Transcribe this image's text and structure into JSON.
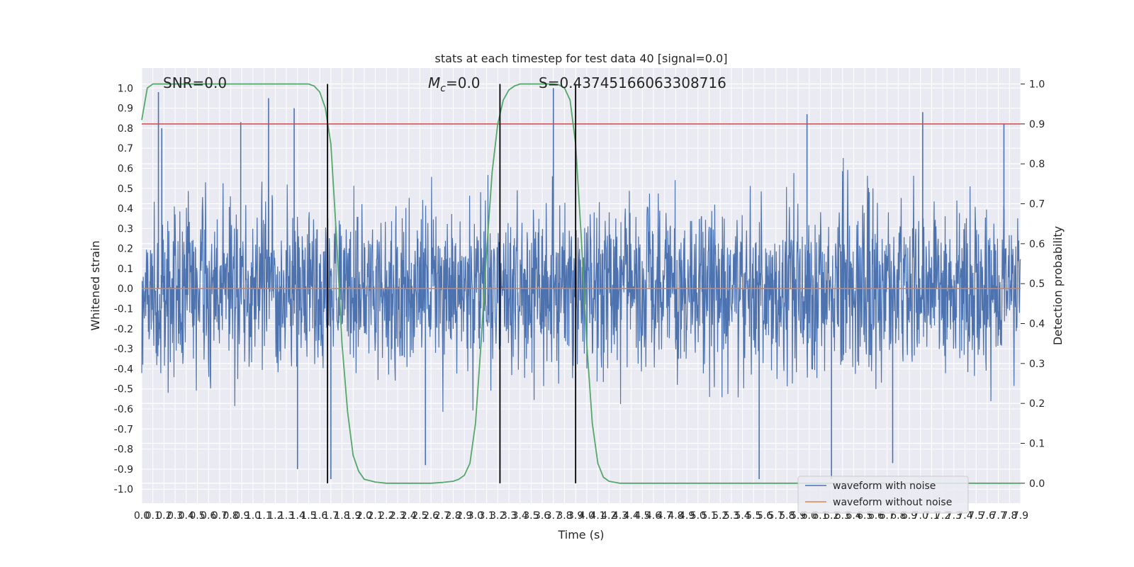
{
  "chart_data": {
    "type": "line",
    "title": "stats at each timestep for test data 40 [signal=0.0]",
    "xlabel": "Time (s)",
    "ylabel_left": "Whitened strain",
    "ylabel_right": "Detection probability",
    "xlim": [
      0.0,
      7.9
    ],
    "ylim_left": [
      -1.07,
      1.1
    ],
    "ylim_right": [
      -0.05,
      1.04
    ],
    "x_ticks": [
      "0.0",
      "0.1",
      "0.2",
      "0.3",
      "0.4",
      "0.5",
      "0.6",
      "0.7",
      "0.8",
      "0.9",
      "1.0",
      "1.1",
      "1.2",
      "1.3",
      "1.4",
      "1.5",
      "1.6",
      "1.7",
      "1.8",
      "1.9",
      "2.0",
      "2.1",
      "2.2",
      "2.3",
      "2.4",
      "2.5",
      "2.6",
      "2.7",
      "2.8",
      "2.9",
      "3.0",
      "3.1",
      "3.2",
      "3.3",
      "3.4",
      "3.5",
      "3.6",
      "3.7",
      "3.8",
      "3.9",
      "4.0",
      "4.1",
      "4.2",
      "4.3",
      "4.4",
      "4.5",
      "4.6",
      "4.7",
      "4.8",
      "4.9",
      "5.0",
      "5.1",
      "5.2",
      "5.3",
      "5.4",
      "5.5",
      "5.6",
      "5.7",
      "5.8",
      "5.9",
      "6.0",
      "6.1",
      "6.2",
      "6.3",
      "6.4",
      "6.5",
      "6.6",
      "6.7",
      "6.8",
      "6.9",
      "7.0",
      "7.1",
      "7.2",
      "7.3",
      "7.4",
      "7.5",
      "7.6",
      "7.7",
      "7.8",
      "7.9"
    ],
    "y_ticks_left": [
      "1.0",
      "0.9",
      "0.8",
      "0.7",
      "0.6",
      "0.5",
      "0.4",
      "0.3",
      "0.2",
      "0.1",
      "0.0",
      "-0.1",
      "-0.2",
      "-0.3",
      "-0.4",
      "-0.5",
      "-0.6",
      "-0.7",
      "-0.8",
      "-0.9",
      "-1.0"
    ],
    "y_ticks_right": [
      "1.0",
      "0.9",
      "0.8",
      "0.7",
      "0.6",
      "0.5",
      "0.4",
      "0.3",
      "0.2",
      "0.1",
      "0.0"
    ],
    "annotations": {
      "snr": "SNR=0.0",
      "mc": "=0.0",
      "mc_symbol": "M",
      "mc_subscript": "c",
      "s": "S=0.43745166063308716"
    },
    "threshold": {
      "axis": "right",
      "value": 0.9,
      "color": "#c44e52"
    },
    "vertical_lines": [
      1.67,
      3.22,
      3.9
    ],
    "grid": true,
    "legend_position": "lower-right",
    "series": [
      {
        "name": "waveform with noise",
        "axis": "left",
        "color": "#4c72b0",
        "kind": "noise",
        "amplitude_typical": 0.4,
        "amplitude_max": 1.0,
        "spikes": [
          {
            "x": 0.15,
            "y": 0.98
          },
          {
            "x": 0.18,
            "y": 0.8
          },
          {
            "x": 1.14,
            "y": 0.95
          },
          {
            "x": 1.37,
            "y": 0.9
          },
          {
            "x": 0.89,
            "y": 0.83
          },
          {
            "x": 3.7,
            "y": 1.0
          },
          {
            "x": 5.98,
            "y": 0.87
          },
          {
            "x": 7.02,
            "y": 0.88
          },
          {
            "x": 7.75,
            "y": 0.82
          },
          {
            "x": 1.4,
            "y": -0.9
          },
          {
            "x": 1.7,
            "y": -0.95
          },
          {
            "x": 2.55,
            "y": -0.88
          },
          {
            "x": 5.55,
            "y": -0.95
          },
          {
            "x": 6.2,
            "y": -0.95
          },
          {
            "x": 6.75,
            "y": -0.87
          }
        ]
      },
      {
        "name": "waveform without noise",
        "axis": "left",
        "color": "#dd8452",
        "kind": "line",
        "x": [
          0.0,
          7.9
        ],
        "y": [
          0.0,
          0.0
        ]
      },
      {
        "name": "detection probability",
        "axis": "right",
        "color": "#55a868",
        "kind": "line",
        "x": [
          0.0,
          0.05,
          0.1,
          0.2,
          0.4,
          0.8,
          1.2,
          1.5,
          1.55,
          1.6,
          1.65,
          1.7,
          1.75,
          1.8,
          1.85,
          1.9,
          1.95,
          2.0,
          2.1,
          2.2,
          2.4,
          2.6,
          2.7,
          2.8,
          2.85,
          2.9,
          2.95,
          3.0,
          3.05,
          3.1,
          3.15,
          3.2,
          3.25,
          3.3,
          3.35,
          3.4,
          3.5,
          3.6,
          3.7,
          3.75,
          3.8,
          3.85,
          3.9,
          3.95,
          4.0,
          4.05,
          4.1,
          4.15,
          4.2,
          4.3,
          4.4,
          5.0,
          6.0,
          7.0,
          7.9
        ],
        "y": [
          0.91,
          0.99,
          1.0,
          1.0,
          1.0,
          1.0,
          1.0,
          1.0,
          0.995,
          0.98,
          0.94,
          0.85,
          0.62,
          0.35,
          0.18,
          0.07,
          0.03,
          0.01,
          0.003,
          0.0,
          0.0,
          0.0,
          0.002,
          0.005,
          0.01,
          0.02,
          0.05,
          0.15,
          0.35,
          0.58,
          0.78,
          0.9,
          0.96,
          0.985,
          0.995,
          1.0,
          1.0,
          1.0,
          1.0,
          0.998,
          0.99,
          0.96,
          0.85,
          0.62,
          0.35,
          0.15,
          0.05,
          0.015,
          0.005,
          0.0,
          0.0,
          0.0,
          0.0,
          0.0,
          0.0
        ]
      }
    ]
  }
}
